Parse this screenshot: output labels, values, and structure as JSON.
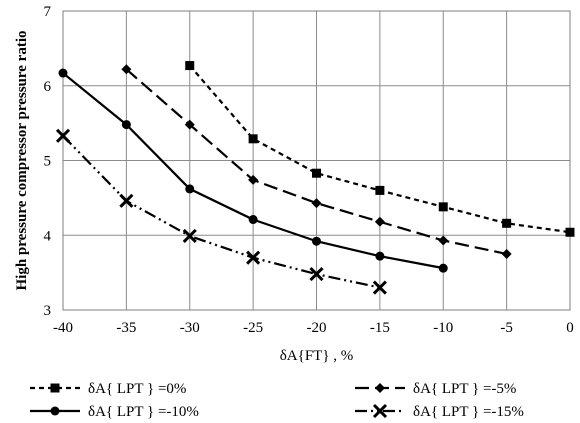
{
  "chart_data": {
    "type": "line",
    "title": "",
    "xlabel": "δA{FT} , %",
    "ylabel": "High pressure compressor pressure ratio",
    "xlim": [
      -40,
      0
    ],
    "ylim": [
      3,
      7
    ],
    "xticks": [
      "-40",
      "-35",
      "-30",
      "-25",
      "-20",
      "-15",
      "-10",
      "-5",
      "0"
    ],
    "yticks": [
      "3",
      "4",
      "5",
      "6",
      "7"
    ],
    "grid": true,
    "legend_position": "bottom",
    "series": [
      {
        "name": "δA{LPT}=0%",
        "legend_label": "δA{ LPT } =0%",
        "marker": "square",
        "dash": "short-dash",
        "x": [
          -30,
          -25,
          -20,
          -15,
          -10,
          -5,
          0
        ],
        "y": [
          6.27,
          5.29,
          4.83,
          4.6,
          4.38,
          4.16,
          4.04
        ]
      },
      {
        "name": "δA{LPT}=-5%",
        "legend_label": "δA{ LPT } =-5%",
        "marker": "diamond",
        "dash": "long-dash",
        "x": [
          -35,
          -30,
          -25,
          -20,
          -15,
          -10,
          -5
        ],
        "y": [
          6.22,
          5.48,
          4.74,
          4.43,
          4.18,
          3.93,
          3.75
        ]
      },
      {
        "name": "δA{LPT}=-10%",
        "legend_label": "δA{ LPT } =-10%",
        "marker": "circle",
        "dash": "solid",
        "x": [
          -40,
          -35,
          -30,
          -25,
          -20,
          -15,
          -10
        ],
        "y": [
          6.17,
          5.48,
          4.62,
          4.21,
          3.92,
          3.72,
          3.56
        ]
      },
      {
        "name": "δA{LPT}=-15%",
        "legend_label": "δA{ LPT } =-15%",
        "marker": "x",
        "dash": "dash-dot-dot",
        "x": [
          -40,
          -35,
          -30,
          -25,
          -20,
          -15
        ],
        "y": [
          5.33,
          4.46,
          3.99,
          3.7,
          3.48,
          3.3
        ]
      }
    ]
  }
}
